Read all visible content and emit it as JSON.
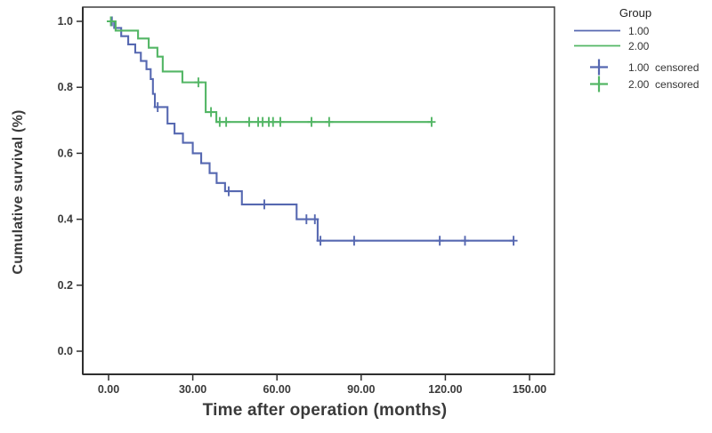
{
  "figure": {
    "background": "#ffffff",
    "axis_color": "#3a3a3a"
  },
  "legend": {
    "title": "Group",
    "entries": [
      {
        "label": "1.00",
        "type": "line",
        "color": "#5668b1"
      },
      {
        "label": "2.00",
        "type": "line",
        "color": "#53b665"
      },
      {
        "label": "1.00  censored",
        "type": "plus",
        "color": "#5668b1"
      },
      {
        "label": "2.00  censored",
        "type": "plus",
        "color": "#53b665"
      }
    ]
  },
  "chart_data": {
    "type": "line",
    "subtype": "kaplan-meier-step",
    "title": "",
    "xlabel": "Time after operation (months)",
    "ylabel": "Cumulative survival (%)",
    "xlim": [
      -9,
      159
    ],
    "ylim": [
      -0.07,
      1.04
    ],
    "grid": false,
    "legend_position": "outside-top-right",
    "x_ticks": {
      "values": [
        0,
        30,
        60,
        90,
        120,
        150
      ],
      "labels": [
        "0.00",
        "30.00",
        "60.00",
        "90.00",
        "120.00",
        "150.00"
      ]
    },
    "y_ticks": {
      "values": [
        0,
        0.2,
        0.4,
        0.6,
        0.8,
        1.0
      ],
      "labels": [
        "0.0",
        "0.2",
        "0.4",
        "0.6",
        "0.8",
        "1.0"
      ]
    },
    "series": [
      {
        "name": "1.00",
        "color": "#5668b1",
        "steps": [
          [
            0,
            1.0
          ],
          [
            2,
            0.98
          ],
          [
            4.5,
            0.955
          ],
          [
            7,
            0.93
          ],
          [
            9.5,
            0.905
          ],
          [
            11.5,
            0.88
          ],
          [
            13.5,
            0.855
          ],
          [
            15,
            0.825
          ],
          [
            15.8,
            0.78
          ],
          [
            16.5,
            0.74
          ],
          [
            21,
            0.69
          ],
          [
            23.5,
            0.66
          ],
          [
            26.5,
            0.632
          ],
          [
            30,
            0.6
          ],
          [
            33,
            0.57
          ],
          [
            36,
            0.54
          ],
          [
            38.5,
            0.51
          ],
          [
            41.5,
            0.485
          ],
          [
            47.5,
            0.445
          ],
          [
            67,
            0.4
          ],
          [
            74.5,
            0.335
          ],
          [
            144.5,
            0.335
          ]
        ],
        "censored": [
          [
            1.2,
            1.0
          ],
          [
            17.5,
            0.74
          ],
          [
            42.8,
            0.485
          ],
          [
            55.5,
            0.445
          ],
          [
            70.5,
            0.4
          ],
          [
            73.5,
            0.4
          ],
          [
            75.5,
            0.335
          ],
          [
            87.5,
            0.335
          ],
          [
            118,
            0.335
          ],
          [
            127,
            0.335
          ],
          [
            144.3,
            0.335
          ]
        ]
      },
      {
        "name": "2.00",
        "color": "#53b665",
        "steps": [
          [
            0,
            1.0
          ],
          [
            2.5,
            0.972
          ],
          [
            10.5,
            0.948
          ],
          [
            14.3,
            0.92
          ],
          [
            17.4,
            0.893
          ],
          [
            19.3,
            0.848
          ],
          [
            26.3,
            0.815
          ],
          [
            34.6,
            0.725
          ],
          [
            38.4,
            0.695
          ],
          [
            115.1,
            0.695
          ]
        ],
        "censored": [
          [
            0.8,
            1.0
          ],
          [
            32,
            0.815
          ],
          [
            36.5,
            0.725
          ],
          [
            39.6,
            0.695
          ],
          [
            41.9,
            0.695
          ],
          [
            50.1,
            0.695
          ],
          [
            53.3,
            0.695
          ],
          [
            54.9,
            0.695
          ],
          [
            57.1,
            0.695
          ],
          [
            58.6,
            0.695
          ],
          [
            61.2,
            0.695
          ],
          [
            72.3,
            0.695
          ],
          [
            78.6,
            0.695
          ],
          [
            115.1,
            0.695
          ]
        ]
      }
    ]
  }
}
